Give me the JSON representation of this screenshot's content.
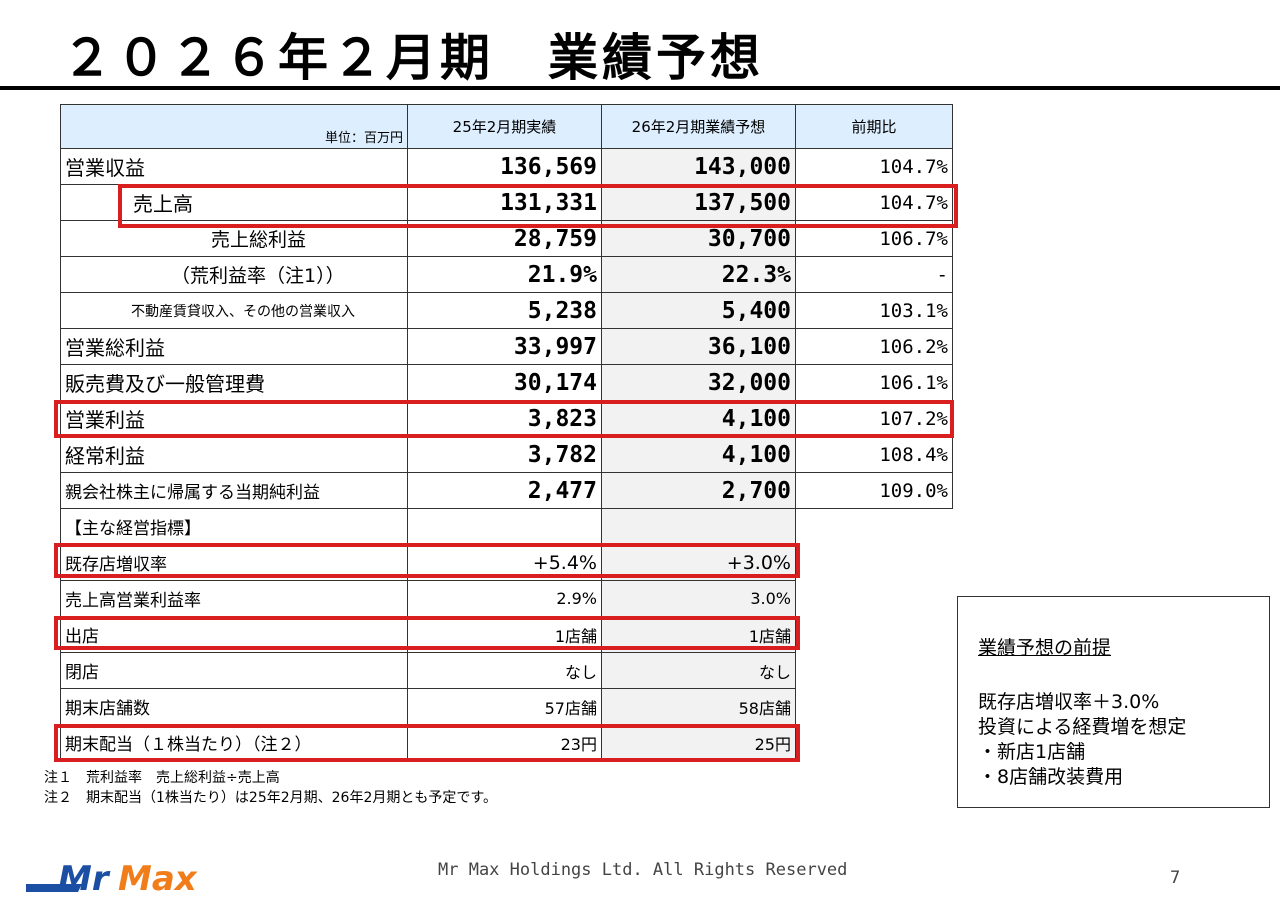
{
  "title": "２０２６年２月期　業績予想",
  "table": {
    "unit": "単位：百万円",
    "col_actual": "25年2月期実績",
    "col_forecast": "26年2月期業績予想",
    "col_ratio": "前期比",
    "rows": [
      {
        "label": "営業収益",
        "actual": "136,569",
        "forecast": "143,000",
        "ratio": "104.7%"
      },
      {
        "label": "売上高",
        "actual": "131,331",
        "forecast": "137,500",
        "ratio": "104.7%"
      },
      {
        "label": "売上総利益",
        "actual": "28,759",
        "forecast": "30,700",
        "ratio": "106.7%"
      },
      {
        "label": "（荒利益率（注1））",
        "actual": "21.9%",
        "forecast": "22.3%",
        "ratio": "-"
      },
      {
        "label": "不動産賃貸収入、その他の営業収入",
        "actual": "5,238",
        "forecast": "5,400",
        "ratio": "103.1%"
      },
      {
        "label": "営業総利益",
        "actual": "33,997",
        "forecast": "36,100",
        "ratio": "106.2%"
      },
      {
        "label": "販売費及び一般管理費",
        "actual": "30,174",
        "forecast": "32,000",
        "ratio": "106.1%"
      },
      {
        "label": "営業利益",
        "actual": "3,823",
        "forecast": "4,100",
        "ratio": "107.2%"
      },
      {
        "label": "経常利益",
        "actual": "3,782",
        "forecast": "4,100",
        "ratio": "108.4%"
      },
      {
        "label": "親会社株主に帰属する当期純利益",
        "actual": "2,477",
        "forecast": "2,700",
        "ratio": "109.0%"
      }
    ],
    "kpi_header": "【主な経営指標】",
    "kpis": [
      {
        "label": "既存店増収率",
        "actual": "+5.4%",
        "forecast": "+3.0%"
      },
      {
        "label": "売上高営業利益率",
        "actual": "2.9%",
        "forecast": "3.0%"
      },
      {
        "label": "出店",
        "actual": "1店舗",
        "forecast": "1店舗"
      },
      {
        "label": "閉店",
        "actual": "なし",
        "forecast": "なし"
      },
      {
        "label": "期末店舗数",
        "actual": "57店舗",
        "forecast": "58店舗"
      },
      {
        "label": "期末配当（１株当たり）（注２）",
        "actual": "23円",
        "forecast": "25円"
      }
    ]
  },
  "notes": [
    "注１　荒利益率　売上総利益÷売上高",
    "注２　期末配当（1株当たり）は25年2月期、26年2月期とも予定です。"
  ],
  "premise": {
    "heading": "業績予想の前提",
    "lines": [
      "既存店増収率＋3.0%",
      "投資による経費増を想定",
      "・新店1店舗",
      "・8店舗改装費用"
    ]
  },
  "footer": {
    "logo_text": "MrMax",
    "copyright": "Mr Max Holdings Ltd. All Rights Reserved",
    "page_number": "7"
  },
  "colors": {
    "highlight": "#d81e1e",
    "header_bg": "#ddeeff",
    "logo_blue": "#1a4fa3",
    "logo_orange": "#f07d1a"
  }
}
